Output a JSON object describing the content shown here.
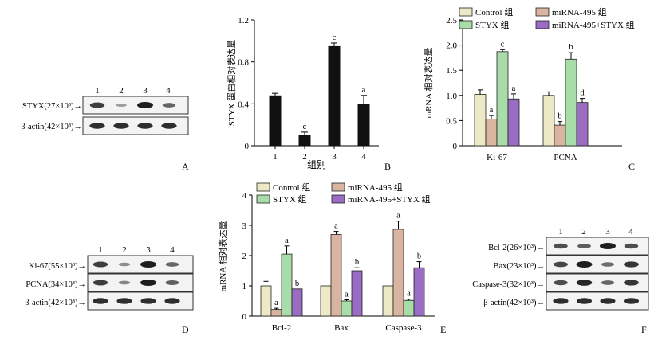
{
  "colors": {
    "control": "#ede8c6",
    "mirna": "#d8b4a1",
    "styx": "#a8dca8",
    "combo": "#9b6cc4",
    "bar_black": "#111111",
    "blot_bg": "#f3f3f3"
  },
  "chart_data": [
    {
      "panel": "A",
      "type": "western-blot",
      "lanes": [
        "1",
        "2",
        "3",
        "4"
      ],
      "rows": [
        {
          "label": "STYX(27×10³)→",
          "intensity": [
            0.8,
            0.2,
            1.0,
            0.55
          ]
        },
        {
          "label": "β-actin(42×10³)→",
          "intensity": [
            0.9,
            0.9,
            0.9,
            0.9
          ]
        }
      ]
    },
    {
      "panel": "B",
      "type": "bar",
      "categories": [
        "1",
        "2",
        "3",
        "4"
      ],
      "values": [
        0.48,
        0.1,
        0.95,
        0.4
      ],
      "errors": [
        0.02,
        0.03,
        0.03,
        0.08
      ],
      "letters": [
        "",
        "c",
        "c",
        "a"
      ],
      "xlabel": "组别",
      "ylabel": "STYX 蛋白相对表达量",
      "ylim": [
        0,
        1.2
      ],
      "yticks": [
        "0",
        "0.4",
        "0.8",
        "1.2"
      ]
    },
    {
      "panel": "C",
      "type": "bar",
      "categories": [
        "Ki-67",
        "PCNA"
      ],
      "series": [
        {
          "name": "Control 组",
          "values": [
            1.02,
            1.0
          ],
          "errors": [
            0.09,
            0.07
          ],
          "letters": [
            "",
            ""
          ]
        },
        {
          "name": "miRNA-495 组",
          "values": [
            0.53,
            0.41
          ],
          "errors": [
            0.07,
            0.07
          ],
          "letters": [
            "a",
            "b"
          ]
        },
        {
          "name": "STYX 组",
          "values": [
            1.87,
            1.72
          ],
          "errors": [
            0.04,
            0.13
          ],
          "letters": [
            "c",
            "b"
          ]
        },
        {
          "name": "miRNA-495+STYX 组",
          "values": [
            0.93,
            0.86
          ],
          "errors": [
            0.1,
            0.08
          ],
          "letters": [
            "a",
            "d"
          ]
        }
      ],
      "ylabel": "mRNA 相对表达量",
      "ylim": [
        0,
        2.5
      ],
      "yticks": [
        "0",
        "0.5",
        "1.0",
        "1.5",
        "2.0",
        "2.5"
      ]
    },
    {
      "panel": "D",
      "type": "western-blot",
      "lanes": [
        "1",
        "2",
        "3",
        "4"
      ],
      "rows": [
        {
          "label": "Ki-67(55×10³)→",
          "intensity": [
            0.8,
            0.3,
            1.0,
            0.55
          ]
        },
        {
          "label": "PCNA(34×10³)→",
          "intensity": [
            0.8,
            0.35,
            1.0,
            0.6
          ]
        },
        {
          "label": "β-actin(42×10³)→",
          "intensity": [
            0.9,
            0.9,
            0.9,
            0.9
          ]
        }
      ]
    },
    {
      "panel": "E",
      "type": "bar",
      "categories": [
        "Bcl-2",
        "Bax",
        "Caspase-3"
      ],
      "series": [
        {
          "name": "Control 组",
          "values": [
            1.0,
            1.0,
            1.0
          ],
          "errors": [
            0.15,
            0.0,
            0.0
          ],
          "letters": [
            "",
            "",
            ""
          ]
        },
        {
          "name": "miRNA-495 组",
          "values": [
            0.22,
            2.7,
            2.87
          ],
          "errors": [
            0.04,
            0.1,
            0.27
          ],
          "letters": [
            "a",
            "a",
            "a"
          ]
        },
        {
          "name": "STYX 组",
          "values": [
            2.05,
            0.5,
            0.52
          ],
          "errors": [
            0.27,
            0.04,
            0.04
          ],
          "letters": [
            "a",
            "a",
            "a"
          ]
        },
        {
          "name": "miRNA-495+STYX 组",
          "values": [
            0.9,
            1.5,
            1.6
          ],
          "errors": [
            0.0,
            0.1,
            0.2
          ],
          "letters": [
            "b",
            "b",
            "b"
          ]
        }
      ],
      "ylabel": "mRNA 相对表达量",
      "ylim": [
        0,
        4
      ],
      "yticks": [
        "0",
        "1",
        "2",
        "3",
        "4"
      ]
    },
    {
      "panel": "F",
      "type": "western-blot",
      "lanes": [
        "1",
        "2",
        "3",
        "4"
      ],
      "rows": [
        {
          "label": "Bcl-2(26×10³)→",
          "intensity": [
            0.7,
            0.6,
            1.0,
            0.7
          ]
        },
        {
          "label": "Bax(23×10³)→",
          "intensity": [
            0.75,
            1.0,
            0.5,
            0.85
          ]
        },
        {
          "label": "Caspase-3(32×10³)→",
          "intensity": [
            0.7,
            0.95,
            0.55,
            0.85
          ]
        },
        {
          "label": "β-actin(42×10³)→",
          "intensity": [
            0.9,
            0.9,
            0.9,
            0.9
          ]
        }
      ]
    }
  ]
}
